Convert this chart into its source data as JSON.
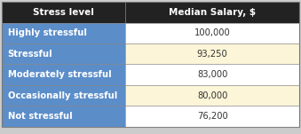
{
  "header": [
    "Stress level",
    "Median Salary, $"
  ],
  "rows": [
    [
      "Highly stressful",
      "100,000"
    ],
    [
      "Stressful",
      "93,250"
    ],
    [
      "Moderately stressful",
      "83,000"
    ],
    [
      "Occasionally stressful",
      "80,000"
    ],
    [
      "Not stressful",
      "76,200"
    ]
  ],
  "header_bg": "#222222",
  "header_fg": "#ffffff",
  "left_col_bg": "#5b8dc9",
  "left_col_fg": "#ffffff",
  "right_col_bg_odd": "#ffffff",
  "right_col_bg_even": "#fdf5d8",
  "right_col_fg": "#333333",
  "border_color": "#999999",
  "figure_bg": "#cccccc",
  "table_bg": "#cccccc",
  "col_split": 0.415,
  "font_size": 7.2,
  "header_font_size": 7.5
}
